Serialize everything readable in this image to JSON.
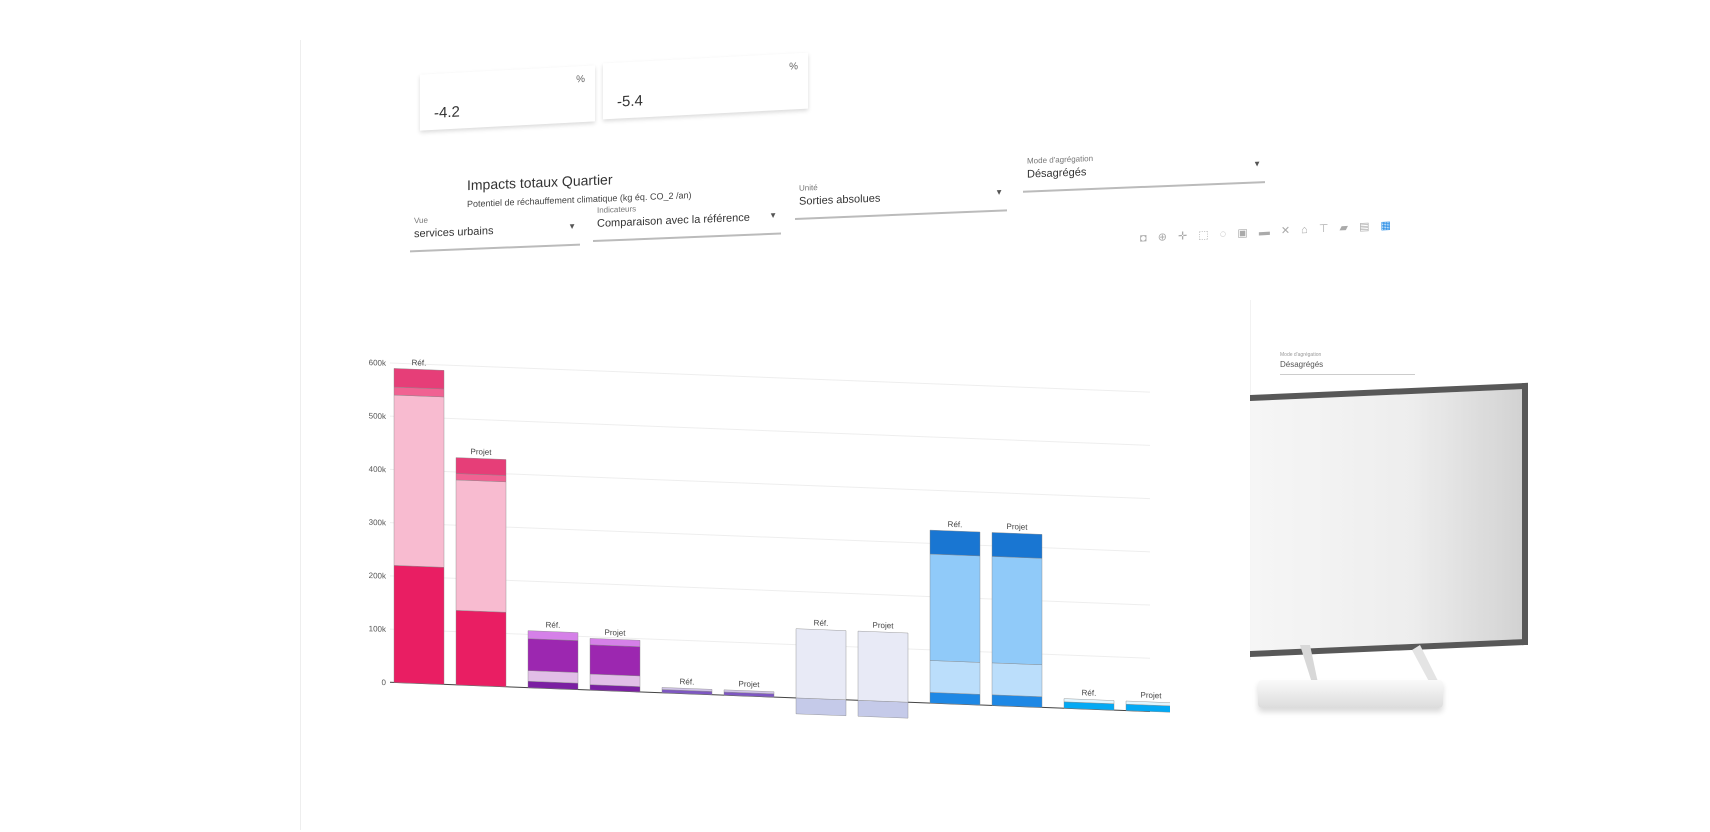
{
  "kpis": [
    {
      "value": "-4.2",
      "unit": "%"
    },
    {
      "value": "-5.4",
      "unit": "%"
    }
  ],
  "card": {
    "title": "Impacts totaux Quartier",
    "subtitle": "Potentiel de réchauffement climatique (kg éq. CO_2 /an)"
  },
  "selects": {
    "vue": {
      "label": "Vue",
      "value": "services urbains"
    },
    "indicateurs": {
      "label": "Indicateurs",
      "value": "Comparaison avec la référence"
    },
    "unite": {
      "label": "Unité",
      "value": "Sorties absolues"
    },
    "mode": {
      "label": "Mode d'agrégation",
      "value": "Désagrégés"
    }
  },
  "toolbar": {
    "icons": [
      "camera-icon",
      "zoom-icon",
      "pan-icon",
      "box-select-icon",
      "lasso-icon",
      "zoom-in-icon",
      "zoom-out-icon",
      "autoscale-icon",
      "home-icon",
      "spike-icon",
      "hover-closest-icon",
      "hover-compare-icon",
      "plotly-logo-icon"
    ]
  },
  "chart_data": {
    "type": "bar",
    "stacked": true,
    "yticks": [
      "0",
      "100k",
      "200k",
      "300k",
      "400k",
      "500k",
      "600k"
    ],
    "ylim": [
      0,
      620000
    ],
    "groups": [
      {
        "labels": [
          "Réf.",
          "Projet"
        ],
        "color": "#e91e63",
        "segments": [
          {
            "color": "#e91e63",
            "values": [
              220000,
              140000
            ]
          },
          {
            "color": "#f8bbd0",
            "values": [
              320000,
              245000
            ]
          },
          {
            "color": "#f06292",
            "values": [
              15000,
              12000
            ]
          },
          {
            "color": "#e63e78",
            "values": [
              35000,
              30000
            ]
          }
        ]
      },
      {
        "labels": [
          "Réf.",
          "Projet"
        ],
        "color": "#8e24aa",
        "segments": [
          {
            "color": "#7b1fa2",
            "values": [
              12000,
              10000
            ]
          },
          {
            "color": "#e1bee7",
            "values": [
              20000,
              20000
            ]
          },
          {
            "color": "#9c27b0",
            "values": [
              60000,
              55000
            ]
          },
          {
            "color": "#d580e8",
            "values": [
              15000,
              12000
            ]
          }
        ]
      },
      {
        "labels": [
          "Réf.",
          "Projet"
        ],
        "color": "#7e57c2",
        "segments": [
          {
            "color": "#7e57c2",
            "values": [
              6000,
              6000
            ]
          },
          {
            "color": "#d1c4e9",
            "values": [
              4000,
              4000
            ]
          }
        ]
      },
      {
        "labels": [
          "Réf.",
          "Projet"
        ],
        "color": "#c5cae9",
        "segments": [
          {
            "color": "#c5cae9",
            "values": [
              -30000,
              -30000
            ]
          },
          {
            "color": "#e8eaf6",
            "values": [
              130000,
              130000
            ]
          }
        ]
      },
      {
        "labels": [
          "Réf.",
          "Projet"
        ],
        "color": "#1e88e5",
        "segments": [
          {
            "color": "#1e88e5",
            "values": [
              20000,
              20000
            ]
          },
          {
            "color": "#bbdefb",
            "values": [
              60000,
              60000
            ]
          },
          {
            "color": "#90caf9",
            "values": [
              200000,
              200000
            ]
          },
          {
            "color": "#1976d2",
            "values": [
              45000,
              45000
            ]
          }
        ]
      },
      {
        "labels": [
          "Réf.",
          "Projet"
        ],
        "color": "#03a9f4",
        "segments": [
          {
            "color": "#03a9f4",
            "values": [
              12000,
              12000
            ]
          },
          {
            "color": "#e1f5fe",
            "values": [
              6000,
              6000
            ]
          }
        ]
      }
    ]
  }
}
